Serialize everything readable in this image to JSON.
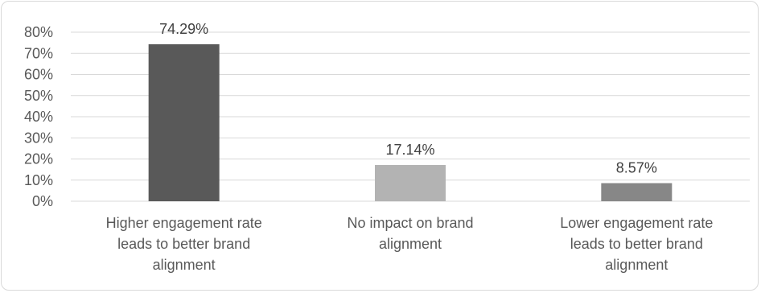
{
  "chart_data": {
    "type": "bar",
    "categories": [
      "Higher engagement rate leads to better brand alignment",
      "No impact on brand alignment",
      "Lower engagement rate leads to better brand alignment"
    ],
    "category_lines": [
      [
        "Higher engagement rate",
        "leads to better brand",
        "alignment"
      ],
      [
        "No impact on brand",
        "alignment"
      ],
      [
        "Lower engagement rate",
        "leads to better brand",
        "alignment"
      ]
    ],
    "values": [
      74.29,
      17.14,
      8.57
    ],
    "data_labels": [
      "74.29%",
      "17.14%",
      "8.57%"
    ],
    "bar_colors": [
      "#595959",
      "#b3b3b3",
      "#878787"
    ],
    "ylim": [
      0,
      80
    ],
    "yticks": [
      0,
      10,
      20,
      30,
      40,
      50,
      60,
      70,
      80
    ],
    "ytick_labels": [
      "0%",
      "10%",
      "20%",
      "30%",
      "40%",
      "50%",
      "60%",
      "70%",
      "80%"
    ],
    "grid": true,
    "title": "",
    "xlabel": "",
    "ylabel": ""
  }
}
